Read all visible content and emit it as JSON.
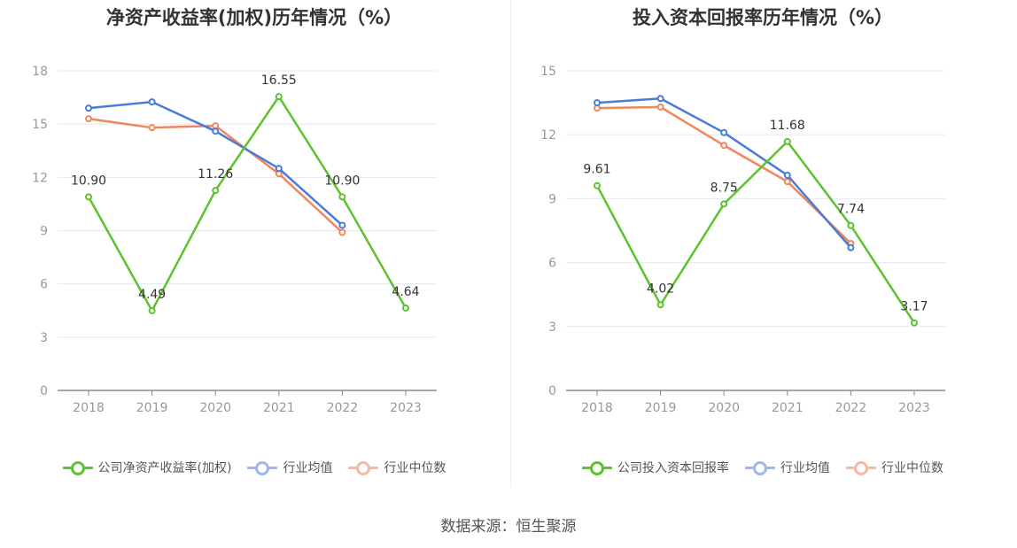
{
  "source": "数据来源：恒生聚源",
  "colors": {
    "company": "#5cc22e",
    "average": "#4a7bdb",
    "median": "#f0875a"
  },
  "chart_data": [
    {
      "type": "line",
      "title": "净资产收益率(加权)历年情况（%）",
      "categories": [
        "2018",
        "2019",
        "2020",
        "2021",
        "2022",
        "2023"
      ],
      "ylim": [
        0,
        18
      ],
      "yticks": [
        0,
        3,
        6,
        9,
        12,
        15,
        18
      ],
      "grid": true,
      "legend_position": "bottom",
      "series": [
        {
          "name": "公司净资产收益率(加权)",
          "key": "company",
          "values": [
            10.9,
            4.49,
            11.26,
            16.55,
            10.9,
            4.64
          ],
          "labels": [
            "10.90",
            "4.49",
            "11.26",
            "16.55",
            "10.90",
            "4.64"
          ]
        },
        {
          "name": "行业均值",
          "key": "average",
          "values": [
            15.9,
            16.25,
            14.6,
            12.5,
            9.3,
            null
          ]
        },
        {
          "name": "行业中位数",
          "key": "median",
          "values": [
            15.3,
            14.8,
            14.9,
            12.2,
            8.9,
            null
          ]
        }
      ]
    },
    {
      "type": "line",
      "title": "投入资本回报率历年情况（%）",
      "categories": [
        "2018",
        "2019",
        "2020",
        "2021",
        "2022",
        "2023"
      ],
      "ylim": [
        0,
        15
      ],
      "yticks": [
        0,
        3,
        6,
        9,
        12,
        15
      ],
      "grid": true,
      "legend_position": "bottom",
      "series": [
        {
          "name": "公司投入资本回报率",
          "key": "company",
          "values": [
            9.61,
            4.02,
            8.75,
            11.68,
            7.74,
            3.17
          ],
          "labels": [
            "9.61",
            "4.02",
            "8.75",
            "11.68",
            "7.74",
            "3.17"
          ]
        },
        {
          "name": "行业均值",
          "key": "average",
          "values": [
            13.5,
            13.7,
            12.1,
            10.1,
            6.7,
            null
          ]
        },
        {
          "name": "行业中位数",
          "key": "median",
          "values": [
            13.25,
            13.3,
            11.5,
            9.8,
            6.9,
            null
          ]
        }
      ]
    }
  ]
}
